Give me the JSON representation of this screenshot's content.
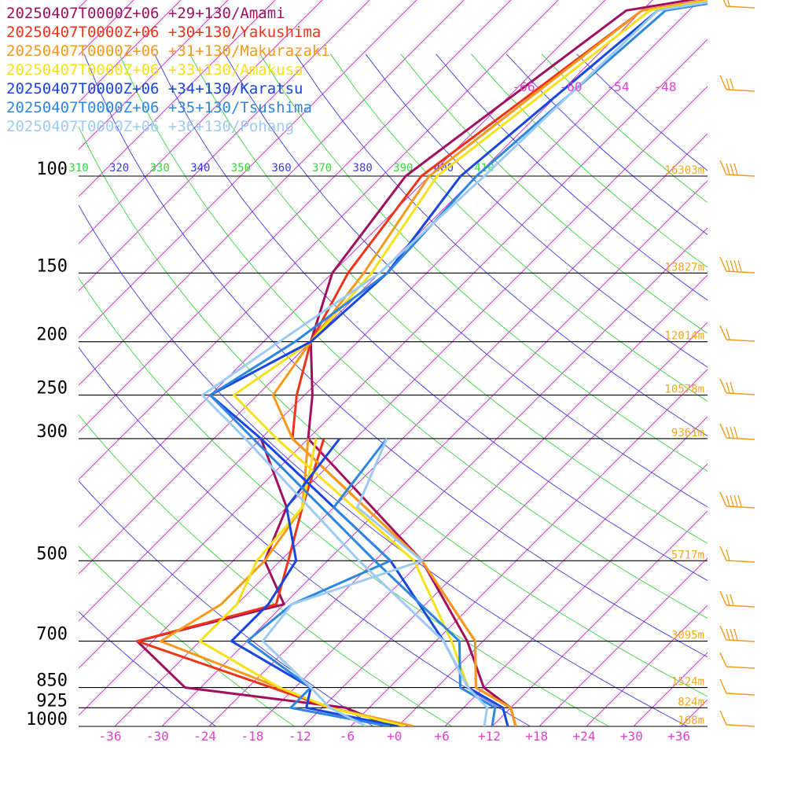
{
  "chart_data": {
    "type": "line",
    "title": "",
    "xlabel": "",
    "ylabel": "",
    "x_ticks": [
      "-36",
      "-30",
      "-24",
      "-18",
      "-12",
      "-6",
      "+0",
      "+6",
      "+12",
      "+18",
      "+24",
      "+30",
      "+36"
    ],
    "pressure_levels": [
      {
        "p": 100,
        "label": "100",
        "height": "16303m"
      },
      {
        "p": 150,
        "label": "150",
        "height": "13827m"
      },
      {
        "p": 200,
        "label": "200",
        "height": "12014m"
      },
      {
        "p": 250,
        "label": "250",
        "height": "10578m"
      },
      {
        "p": 300,
        "label": "300",
        "height": "9361m"
      },
      {
        "p": 500,
        "label": "500",
        "height": "5717m"
      },
      {
        "p": 700,
        "label": "700",
        "height": "3095m"
      },
      {
        "p": 850,
        "label": "850",
        "height": "1524m"
      },
      {
        "p": 925,
        "label": "925",
        "height": "824m"
      },
      {
        "p": 1000,
        "label": "1000",
        "height": "168m"
      }
    ],
    "isotherm_labels": [
      "-66",
      "-60",
      "-54",
      "-48"
    ],
    "theta_labels": [
      "310",
      "320",
      "330",
      "340",
      "350",
      "360",
      "370",
      "380",
      "390",
      "400",
      "410"
    ],
    "series": [
      {
        "name": "20250407T0000Z+06 +29+130/Amami",
        "color": "#a0105f",
        "temp": [
          [
            22,
            17
          ],
          [
            30,
            17
          ],
          [
            50,
            -62
          ],
          [
            100,
            -69
          ],
          [
            150,
            -66
          ],
          [
            200,
            -60
          ],
          [
            250,
            -53
          ],
          [
            300,
            -48
          ],
          [
            500,
            -18
          ],
          [
            700,
            -2
          ],
          [
            850,
            6
          ],
          [
            925,
            12
          ],
          [
            1000,
            15
          ]
        ],
        "dew": [
          [
            300,
            -54
          ],
          [
            400,
            -42
          ],
          [
            500,
            -38
          ],
          [
            600,
            -30
          ],
          [
            700,
            -44
          ],
          [
            850,
            -32
          ],
          [
            925,
            -9
          ],
          [
            1000,
            -1
          ]
        ]
      },
      {
        "name": "20250407T0000Z+06 +30+130/Yakushima",
        "color": "#f0341a",
        "temp": [
          [
            22,
            22
          ],
          [
            30,
            22
          ],
          [
            50,
            -60
          ],
          [
            100,
            -67
          ],
          [
            150,
            -64
          ],
          [
            200,
            -60
          ],
          [
            250,
            -55
          ],
          [
            300,
            -50
          ],
          [
            500,
            -18
          ],
          [
            700,
            -1
          ],
          [
            850,
            5
          ],
          [
            925,
            12
          ],
          [
            1000,
            15
          ]
        ],
        "dew": [
          [
            300,
            -46
          ],
          [
            400,
            -40
          ],
          [
            500,
            -35
          ],
          [
            600,
            -31
          ],
          [
            700,
            -44
          ],
          [
            850,
            -21
          ],
          [
            925,
            -11
          ],
          [
            1000,
            2
          ]
        ]
      },
      {
        "name": "20250407T0000Z+06 +31+130/Makurazaki",
        "color": "#f59a1a",
        "temp": [
          [
            22,
            22
          ],
          [
            30,
            22
          ],
          [
            50,
            -60
          ],
          [
            100,
            -66
          ],
          [
            150,
            -62
          ],
          [
            200,
            -60
          ],
          [
            250,
            -58
          ],
          [
            300,
            -50
          ],
          [
            500,
            -18
          ],
          [
            700,
            -1
          ],
          [
            850,
            5
          ],
          [
            925,
            12
          ],
          [
            1000,
            15
          ]
        ],
        "dew": [
          [
            300,
            -48
          ],
          [
            400,
            -40
          ],
          [
            500,
            -38
          ],
          [
            600,
            -38
          ],
          [
            700,
            -41
          ],
          [
            850,
            -20
          ],
          [
            925,
            -11
          ],
          [
            1000,
            2
          ]
        ]
      },
      {
        "name": "20250407T0000Z+06 +33+130/Amakusa",
        "color": "#f5e21a",
        "temp": [
          [
            22,
            22
          ],
          [
            30,
            22
          ],
          [
            50,
            -59
          ],
          [
            100,
            -65
          ],
          [
            150,
            -61
          ],
          [
            200,
            -60
          ],
          [
            250,
            -63
          ],
          [
            300,
            -52
          ],
          [
            500,
            -19
          ],
          [
            700,
            -4
          ],
          [
            850,
            4
          ],
          [
            925,
            11
          ],
          [
            1000,
            14
          ]
        ],
        "dew": [
          [
            300,
            -47
          ],
          [
            400,
            -40
          ],
          [
            500,
            -39
          ],
          [
            600,
            -36
          ],
          [
            700,
            -36
          ],
          [
            850,
            -20
          ],
          [
            925,
            -11
          ],
          [
            1000,
            1
          ]
        ]
      },
      {
        "name": "20250407T0000Z+06 +34+130/Karatsu",
        "color": "#1846e0",
        "temp": [
          [
            22,
            22
          ],
          [
            30,
            22
          ],
          [
            50,
            -58
          ],
          [
            100,
            -62
          ],
          [
            150,
            -59
          ],
          [
            200,
            -60
          ],
          [
            250,
            -66
          ],
          [
            300,
            -54
          ],
          [
            500,
            -22
          ],
          [
            700,
            -5
          ],
          [
            850,
            4
          ],
          [
            925,
            11
          ],
          [
            1000,
            14
          ]
        ],
        "dew": [
          [
            300,
            -44
          ],
          [
            400,
            -42
          ],
          [
            500,
            -34
          ],
          [
            600,
            -32
          ],
          [
            700,
            -32
          ],
          [
            850,
            -16
          ],
          [
            925,
            -14
          ],
          [
            1000,
            0
          ]
        ]
      },
      {
        "name": "20250407T0000Z+06 +35+130/Tsushima",
        "color": "#2f86e0",
        "temp": [
          [
            22,
            22
          ],
          [
            30,
            22
          ],
          [
            50,
            -57
          ],
          [
            100,
            -60
          ],
          [
            150,
            -59
          ],
          [
            200,
            -62
          ],
          [
            250,
            -66
          ],
          [
            300,
            -55
          ],
          [
            500,
            -24
          ],
          [
            700,
            -3
          ],
          [
            850,
            3
          ],
          [
            925,
            10
          ],
          [
            1000,
            12
          ]
        ],
        "dew": [
          [
            300,
            -38
          ],
          [
            400,
            -36
          ],
          [
            500,
            -22
          ],
          [
            600,
            -29
          ],
          [
            700,
            -30
          ],
          [
            850,
            -16
          ],
          [
            925,
            -16
          ],
          [
            1000,
            -1
          ]
        ]
      },
      {
        "name": "20250407T0000Z+06 +36+130/Pohang",
        "color": "#9ecbf5",
        "temp": [
          [
            22,
            22
          ],
          [
            30,
            22
          ],
          [
            50,
            -58
          ],
          [
            100,
            -59
          ],
          [
            150,
            -60
          ],
          [
            200,
            -64
          ],
          [
            250,
            -67
          ],
          [
            300,
            -56
          ],
          [
            500,
            -26
          ],
          [
            700,
            -5
          ],
          [
            850,
            4
          ],
          [
            925,
            9
          ],
          [
            1000,
            11
          ]
        ],
        "dew": [
          [
            300,
            -38
          ],
          [
            400,
            -33
          ],
          [
            500,
            -18
          ],
          [
            600,
            -29
          ],
          [
            700,
            -28
          ],
          [
            850,
            -16
          ],
          [
            925,
            -11
          ],
          [
            1000,
            -4
          ]
        ]
      }
    ]
  }
}
